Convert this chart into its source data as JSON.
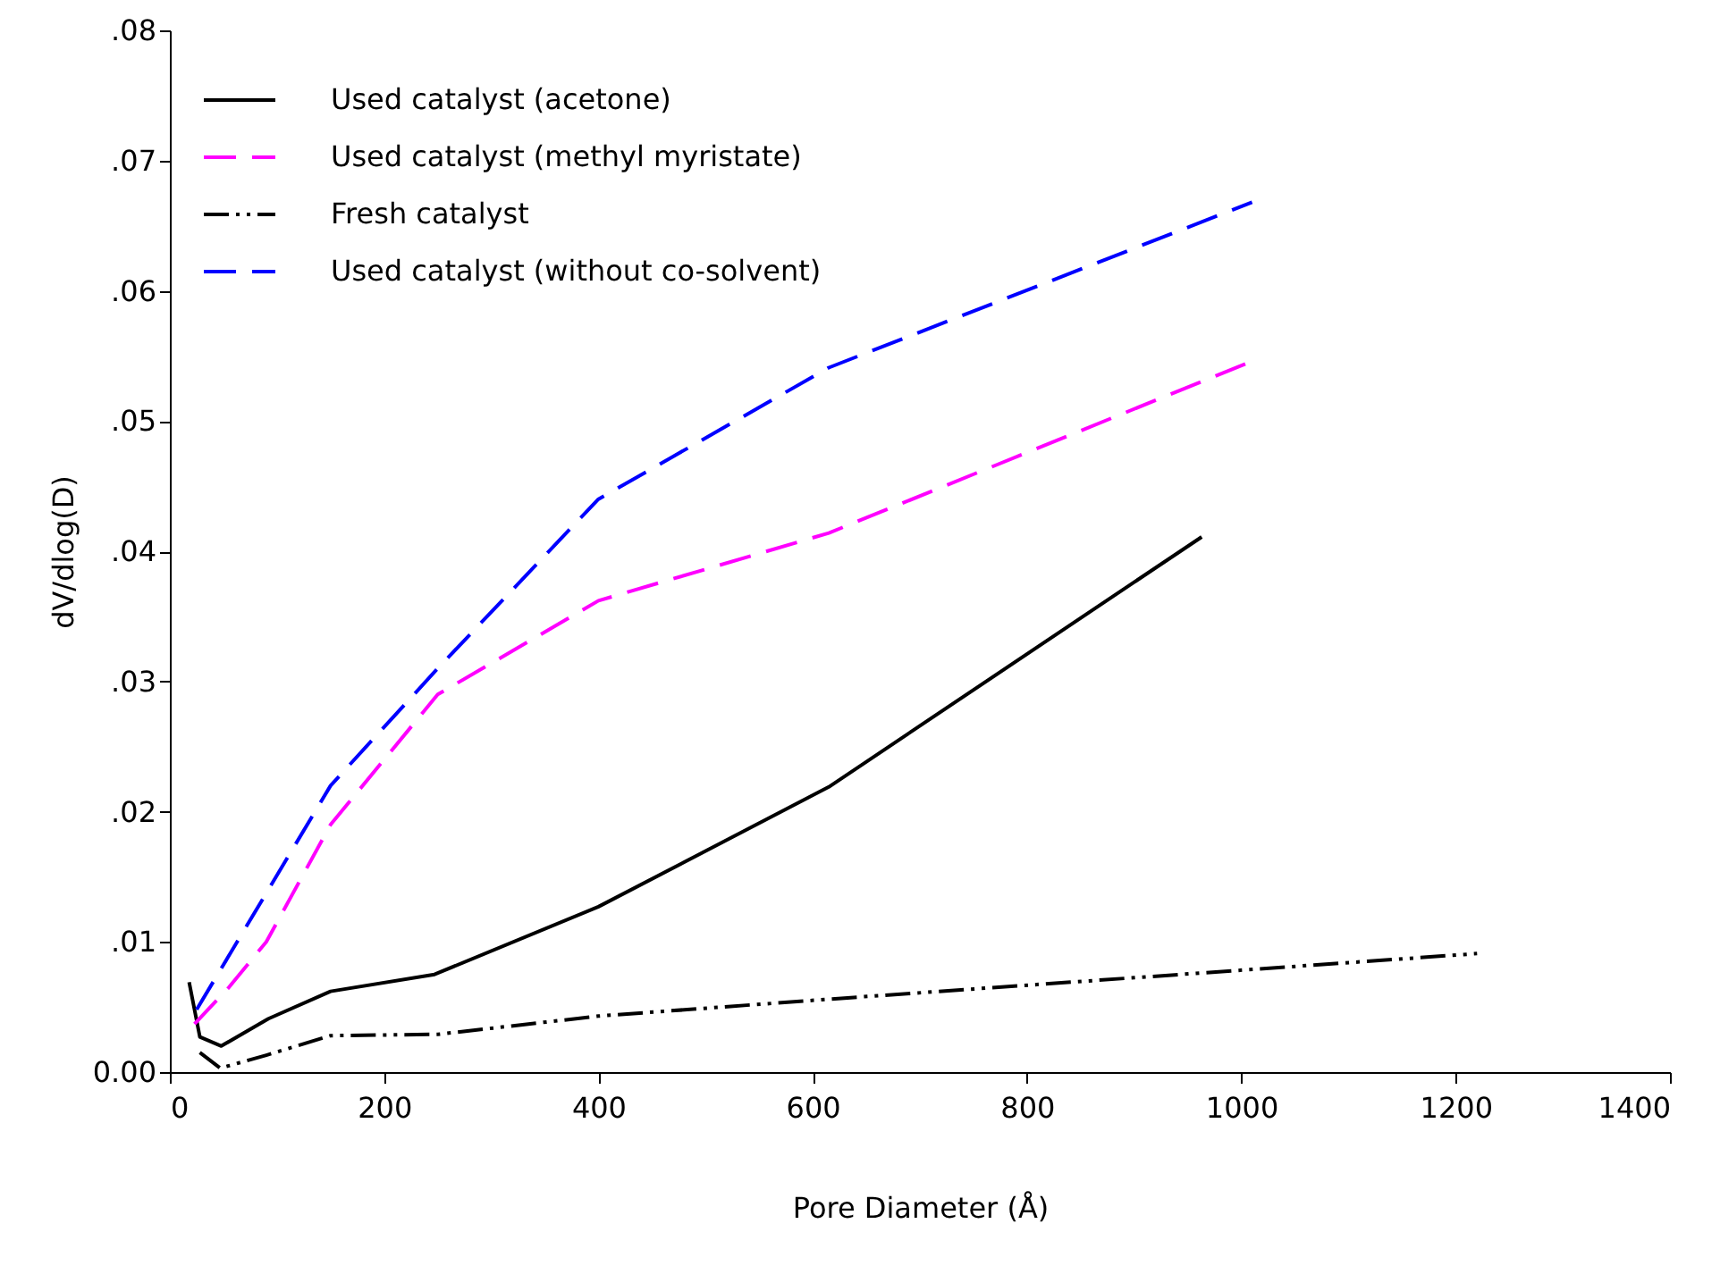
{
  "chart_data": {
    "type": "line",
    "xlabel": "Pore Diameter (Å)",
    "ylabel": "dV/dlog(D)",
    "xlim": [
      0,
      1400
    ],
    "xticks": [
      0,
      200,
      400,
      600,
      800,
      1000,
      1200,
      1400
    ],
    "ylim": [
      0,
      0.08
    ],
    "yticks": [
      {
        "value": 0,
        "label": "0.00"
      },
      {
        "value": 0.01,
        "label": ".01"
      },
      {
        "value": 0.02,
        "label": ".02"
      },
      {
        "value": 0.03,
        "label": ".03"
      },
      {
        "value": 0.04,
        "label": ".04"
      },
      {
        "value": 0.05,
        "label": ".05"
      },
      {
        "value": 0.06,
        "label": ".06"
      },
      {
        "value": 0.07,
        "label": ".07"
      },
      {
        "value": 0.08,
        "label": ".08"
      }
    ],
    "grid": false,
    "legend": "top left",
    "marker": "none",
    "series": [
      {
        "name": "Used catalyst (acetone)",
        "color": "#000000",
        "line_style": "solid",
        "x": [
          18,
          28,
          48,
          92,
          150,
          247,
          400,
          615,
          963
        ],
        "values": [
          0.0069,
          0.0027,
          0.002,
          0.0041,
          0.0062,
          0.0075,
          0.0127,
          0.0219,
          0.0411
        ]
      },
      {
        "name": "Used catalyst (methyl myristate)",
        "color": "#ff00ff",
        "line_style": "dashed",
        "x": [
          23,
          55,
          90,
          150,
          250,
          400,
          615,
          1010
        ],
        "values": [
          0.0037,
          0.0065,
          0.01,
          0.019,
          0.029,
          0.0362,
          0.0414,
          0.0546
        ]
      },
      {
        "name": "Fresh catalyst",
        "color": "#000000",
        "line_style": "dotted",
        "x": [
          28,
          47,
          90,
          150,
          250,
          400,
          615,
          1220
        ],
        "values": [
          0.0015,
          0.0003,
          0.0013,
          0.0028,
          0.0029,
          0.0043,
          0.0056,
          0.0091
        ]
      },
      {
        "name": "Used catalyst (without co-solvent)",
        "color": "#0000ff",
        "line_style": "dashed",
        "x": [
          25,
          150,
          250,
          400,
          615,
          1010
        ],
        "values": [
          0.0048,
          0.022,
          0.031,
          0.044,
          0.0541,
          0.0668
        ]
      }
    ]
  }
}
